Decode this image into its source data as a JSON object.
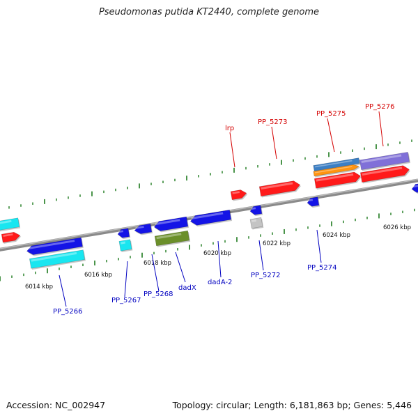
{
  "title": "Pseudomonas putida KT2440, complete genome",
  "footer": {
    "accession": "Accession: NC_002947",
    "summary": "Topology: circular; Length: 6,181,863 bp; Genes: 5,446"
  },
  "colors": {
    "backbone": "#8a8a8a",
    "tick": "#1d7a1d",
    "upper_label": "#d40000",
    "lower_label": "#0000c0",
    "red": "#ff1a1a",
    "blue": "#1414e6",
    "cyan": "#19e6f0",
    "olive": "#6b8f2a",
    "gray": "#c4c4c4",
    "steelblue": "#3c7fc4",
    "orange": "#ff9410",
    "purple": "#8070d8"
  },
  "scale_labels": [
    "6014 kbp",
    "6016 kbp",
    "6018 kbp",
    "6020 kbp",
    "6022 kbp",
    "6024 kbp",
    "6026 kbp"
  ],
  "upper_labels": [
    "lrp",
    "PP_5273",
    "PP_5275",
    "PP_5276"
  ],
  "lower_labels": [
    "PP_5266",
    "PP_5267",
    "PP_5268",
    "dadX",
    "dadA-2",
    "PP_5272",
    "PP_5274"
  ],
  "genes": [
    {
      "color": "cyan",
      "type": "block"
    },
    {
      "color": "red",
      "type": "arrow"
    },
    {
      "color": "blue",
      "type": "arrow"
    },
    {
      "color": "cyan",
      "type": "block"
    },
    {
      "color": "blue",
      "type": "arrow"
    },
    {
      "color": "cyan",
      "type": "block"
    },
    {
      "color": "blue",
      "type": "arrow"
    },
    {
      "color": "blue",
      "type": "arrow"
    },
    {
      "color": "olive",
      "type": "block"
    },
    {
      "color": "blue",
      "type": "arrow"
    },
    {
      "color": "red",
      "type": "arrow"
    },
    {
      "color": "blue",
      "type": "arrow"
    },
    {
      "color": "gray",
      "type": "block"
    },
    {
      "color": "red",
      "type": "arrow"
    },
    {
      "color": "blue",
      "type": "arrow"
    },
    {
      "color": "steelblue",
      "type": "block"
    },
    {
      "color": "orange",
      "type": "arrow"
    },
    {
      "color": "red",
      "type": "arrow"
    },
    {
      "color": "purple",
      "type": "block"
    },
    {
      "color": "red",
      "type": "arrow"
    },
    {
      "color": "blue",
      "type": "arrow"
    }
  ]
}
